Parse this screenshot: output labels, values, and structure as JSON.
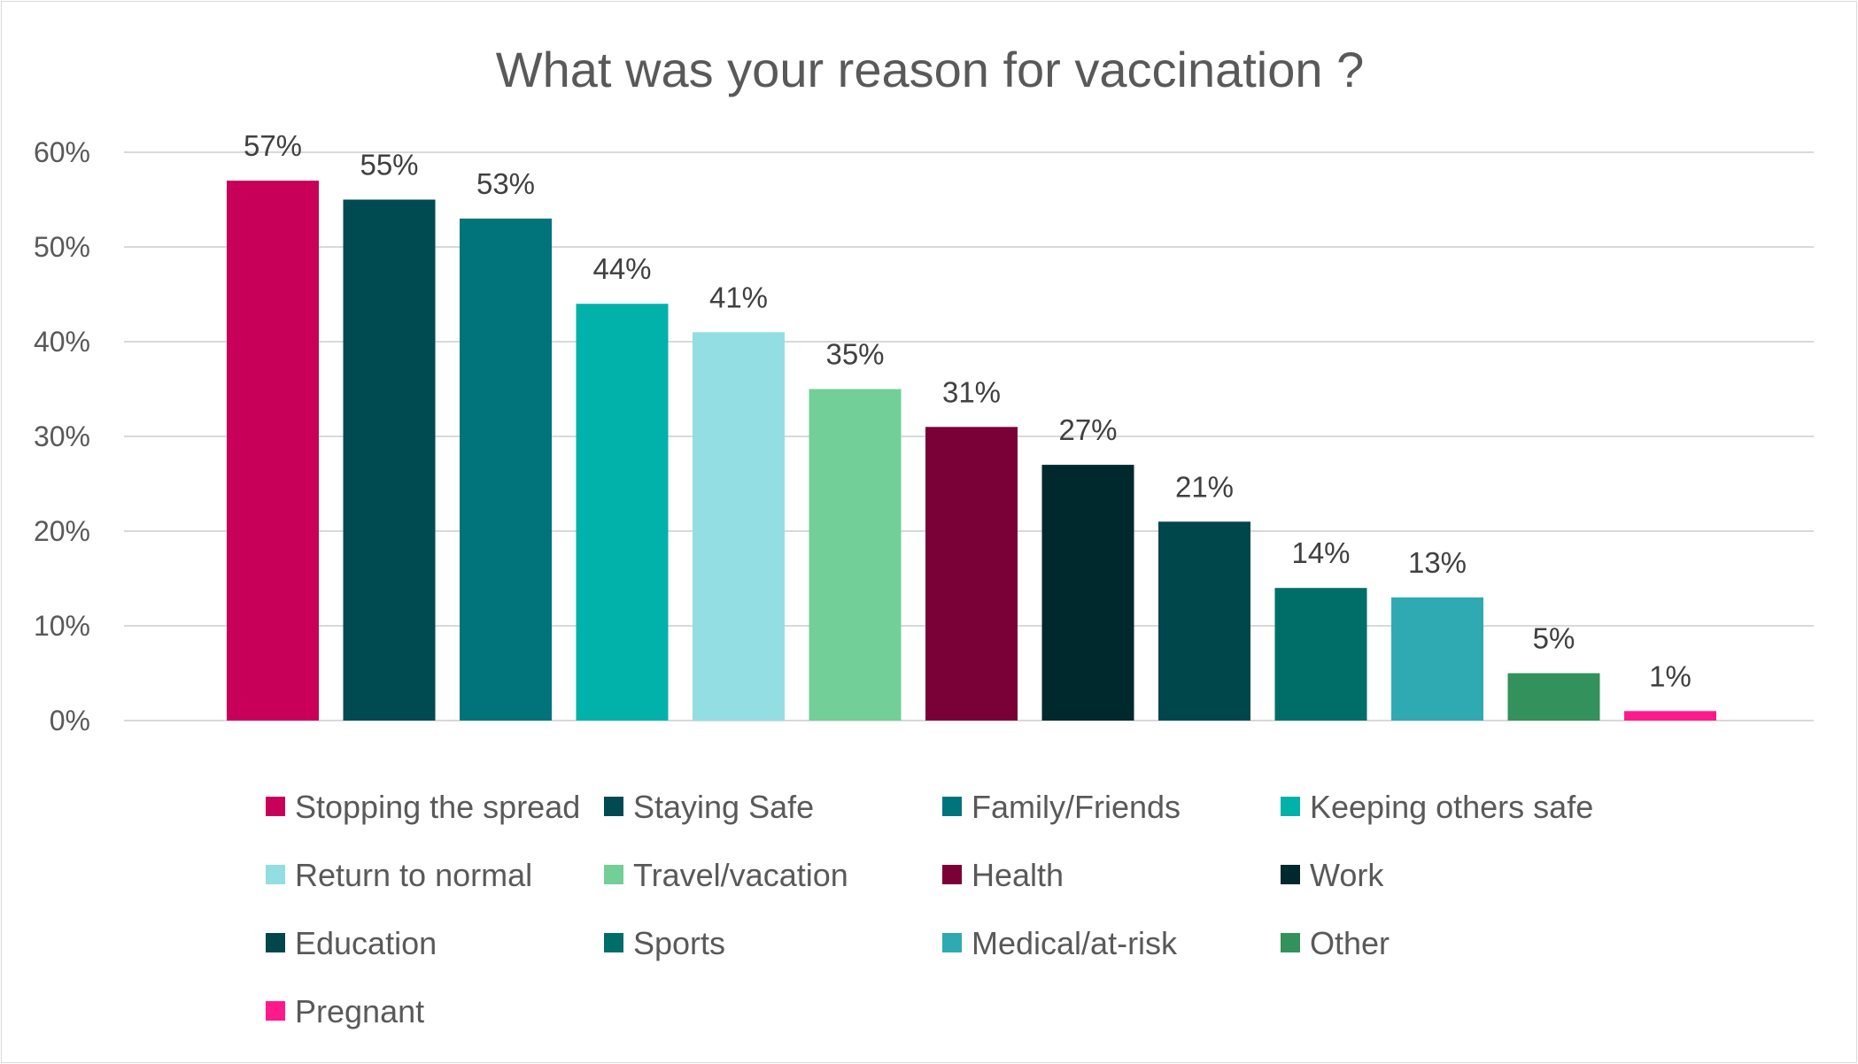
{
  "chart_data": {
    "type": "bar",
    "title": "What was your reason for vaccination ?",
    "categories": [
      "Stopping the spread",
      "Staying Safe",
      "Family/Friends",
      "Keeping others safe",
      "Return to normal",
      "Travel/vacation",
      "Health",
      "Work",
      "Education",
      "Sports",
      "Medical/at-risk",
      "Other",
      "Pregnant"
    ],
    "values": [
      57,
      55,
      53,
      44,
      41,
      35,
      31,
      27,
      21,
      14,
      13,
      5,
      1
    ],
    "data_labels": [
      "57%",
      "55%",
      "53%",
      "44%",
      "41%",
      "35%",
      "31%",
      "27%",
      "21%",
      "14%",
      "13%",
      "5%",
      "1%"
    ],
    "colors": [
      "#C8005A",
      "#004A52",
      "#00737B",
      "#00B2AA",
      "#92DEE2",
      "#72CF98",
      "#7A0038",
      "#00292D",
      "#00474C",
      "#006E68",
      "#2FAAB2",
      "#33925B",
      "#FF1A8C"
    ],
    "ylim": [
      0,
      60
    ],
    "yticks": [
      0,
      10,
      20,
      30,
      40,
      50,
      60
    ],
    "ytick_labels": [
      "0%",
      "10%",
      "20%",
      "30%",
      "40%",
      "50%",
      "60%"
    ],
    "xlabel": "",
    "ylabel": "",
    "grid": true,
    "legend_position": "bottom"
  }
}
